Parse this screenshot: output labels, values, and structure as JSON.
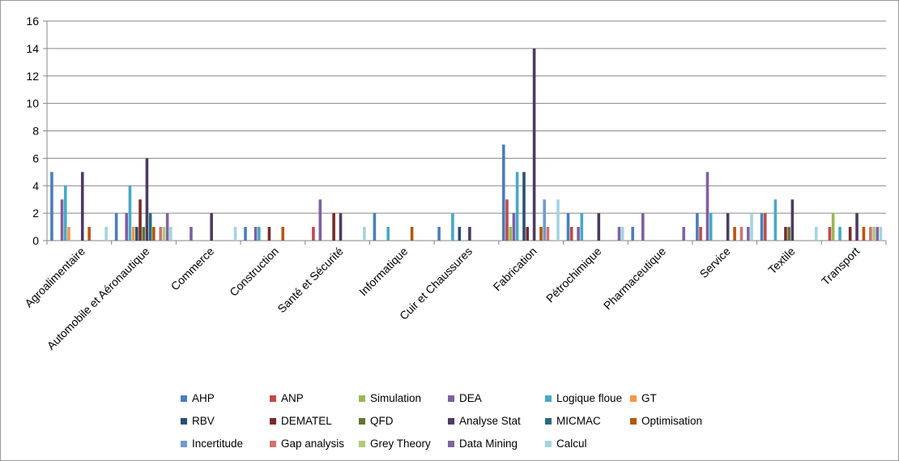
{
  "chart_data": {
    "type": "bar",
    "title": "",
    "xlabel": "",
    "ylabel": "",
    "ylim": [
      0,
      16
    ],
    "yticks": [
      0,
      2,
      4,
      6,
      8,
      10,
      12,
      14,
      16
    ],
    "grid": true,
    "legend_position": "bottom",
    "categories": [
      "Agroalimentaire",
      "Automobile et Aéronautique",
      "Commerce",
      "Construction",
      "Santé et Sécurité",
      "Informatique",
      "Cuir et Chaussures",
      "Fabrication",
      "Pétrochimique",
      "Pharmaceutique",
      "Service",
      "Textile",
      "Transport"
    ],
    "series": [
      {
        "name": "AHP",
        "color": "#4a7ebb",
        "values": [
          5,
          2,
          0,
          1,
          0,
          2,
          1,
          7,
          2,
          1,
          2,
          2,
          0
        ]
      },
      {
        "name": "ANP",
        "color": "#be4b48",
        "values": [
          0,
          0,
          0,
          0,
          1,
          0,
          0,
          3,
          1,
          0,
          1,
          2,
          1
        ]
      },
      {
        "name": "Simulation",
        "color": "#98b954",
        "values": [
          0,
          0,
          0,
          0,
          0,
          0,
          0,
          1,
          0,
          0,
          0,
          0,
          2
        ]
      },
      {
        "name": "DEA",
        "color": "#7d60a0",
        "values": [
          3,
          2,
          1,
          1,
          3,
          0,
          0,
          2,
          1,
          2,
          5,
          0,
          0
        ]
      },
      {
        "name": "Logique floue",
        "color": "#46aac5",
        "values": [
          4,
          4,
          0,
          1,
          0,
          1,
          2,
          5,
          2,
          0,
          2,
          3,
          1
        ]
      },
      {
        "name": "GT",
        "color": "#f79646",
        "values": [
          1,
          1,
          0,
          0,
          0,
          0,
          0,
          0,
          0,
          0,
          0,
          0,
          0
        ]
      },
      {
        "name": "RBV",
        "color": "#2c4d75",
        "values": [
          0,
          1,
          0,
          0,
          0,
          0,
          1,
          5,
          0,
          0,
          0,
          0,
          0
        ]
      },
      {
        "name": "DEMATEL",
        "color": "#772c2a",
        "values": [
          0,
          3,
          0,
          1,
          2,
          0,
          0,
          1,
          0,
          0,
          0,
          1,
          1
        ]
      },
      {
        "name": "QFD",
        "color": "#5f7530",
        "values": [
          0,
          1,
          0,
          0,
          0,
          0,
          0,
          0,
          0,
          0,
          0,
          1,
          0
        ]
      },
      {
        "name": "Analyse Stat",
        "color": "#4d3b62",
        "values": [
          5,
          6,
          2,
          0,
          2,
          0,
          1,
          14,
          2,
          0,
          2,
          3,
          2
        ]
      },
      {
        "name": "MICMAC",
        "color": "#276a7c",
        "values": [
          0,
          2,
          0,
          0,
          0,
          0,
          0,
          0,
          0,
          0,
          0,
          0,
          0
        ]
      },
      {
        "name": "Optimisation",
        "color": "#b65708",
        "values": [
          1,
          1,
          0,
          1,
          0,
          1,
          0,
          1,
          0,
          0,
          1,
          0,
          1
        ]
      },
      {
        "name": "Incertitude",
        "color": "#729aca",
        "values": [
          0,
          0,
          0,
          0,
          0,
          0,
          0,
          3,
          0,
          0,
          0,
          0,
          0
        ]
      },
      {
        "name": "Gap analysis",
        "color": "#cd7371",
        "values": [
          0,
          1,
          0,
          0,
          0,
          0,
          0,
          1,
          0,
          0,
          1,
          0,
          1
        ]
      },
      {
        "name": "Grey Theory",
        "color": "#afc97a",
        "values": [
          0,
          1,
          0,
          0,
          0,
          0,
          0,
          0,
          0,
          0,
          0,
          0,
          1
        ]
      },
      {
        "name": "Data Mining",
        "color": "#8064a2",
        "values": [
          0,
          2,
          0,
          0,
          0,
          0,
          0,
          0,
          1,
          1,
          1,
          0,
          1
        ]
      },
      {
        "name": "Calcul",
        "color": "#a5d3e0",
        "values": [
          1,
          1,
          1,
          0,
          1,
          0,
          0,
          3,
          1,
          0,
          2,
          1,
          1
        ]
      }
    ]
  }
}
